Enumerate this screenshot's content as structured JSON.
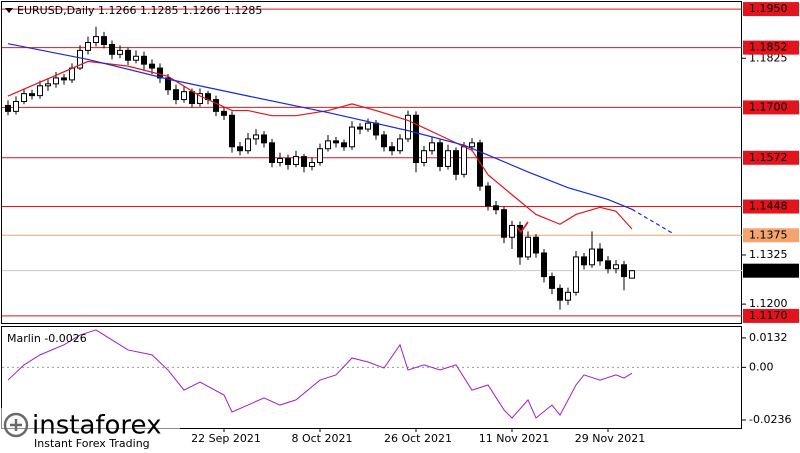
{
  "chart_data": [
    {
      "type": "candlestick",
      "title": "EURUSD,Daily  1.1266 1.1285 1.1266 1.1285",
      "categories": [
        null,
        null,
        null,
        null,
        null,
        null,
        null,
        null,
        null,
        null,
        null,
        null,
        null,
        null,
        null,
        null,
        null,
        null,
        null,
        null,
        null,
        null,
        null,
        null,
        null,
        null,
        null,
        "22 Sep 2021",
        null,
        null,
        null,
        null,
        null,
        null,
        null,
        null,
        null,
        null,
        null,
        "8 Oct 2021",
        null,
        null,
        null,
        null,
        null,
        null,
        null,
        null,
        null,
        null,
        null,
        "26 Oct 2021",
        null,
        null,
        null,
        null,
        null,
        null,
        null,
        null,
        null,
        null,
        null,
        "11 Nov 2021",
        null,
        null,
        null,
        null,
        null,
        null,
        null,
        null,
        null,
        null,
        null,
        "29 Nov 2021",
        null,
        null,
        null
      ],
      "candles": [
        [
          1.1705,
          1.1718,
          1.168,
          1.169
        ],
        [
          1.169,
          1.1728,
          1.1682,
          1.1715
        ],
        [
          1.1715,
          1.1748,
          1.1708,
          1.1735
        ],
        [
          1.1735,
          1.1745,
          1.172,
          1.173
        ],
        [
          1.173,
          1.1768,
          1.1722,
          1.1755
        ],
        [
          1.1755,
          1.1772,
          1.1742,
          1.176
        ],
        [
          1.176,
          1.179,
          1.175,
          1.1775
        ],
        [
          1.1775,
          1.1785,
          1.1758,
          1.177
        ],
        [
          1.177,
          1.1812,
          1.1762,
          1.18
        ],
        [
          1.18,
          1.1858,
          1.1795,
          1.1845
        ],
        [
          1.1845,
          1.188,
          1.1835,
          1.1865
        ],
        [
          1.1865,
          1.1905,
          1.1855,
          1.188
        ],
        [
          1.188,
          1.1892,
          1.185,
          1.186
        ],
        [
          1.186,
          1.187,
          1.1822,
          1.1835
        ],
        [
          1.1835,
          1.1858,
          1.1825,
          1.1845
        ],
        [
          1.1845,
          1.1852,
          1.1808,
          1.182
        ],
        [
          1.182,
          1.1845,
          1.1812,
          1.183
        ],
        [
          1.183,
          1.1842,
          1.1795,
          1.181
        ],
        [
          1.181,
          1.1822,
          1.1785,
          1.18
        ],
        [
          1.18,
          1.1812,
          1.1762,
          1.1775
        ],
        [
          1.1775,
          1.1785,
          1.1732,
          1.1745
        ],
        [
          1.1745,
          1.1758,
          1.1708,
          1.172
        ],
        [
          1.172,
          1.1755,
          1.1712,
          1.174
        ],
        [
          1.174,
          1.1748,
          1.17,
          1.171
        ],
        [
          1.171,
          1.1748,
          1.1702,
          1.1735
        ],
        [
          1.1735,
          1.1742,
          1.1708,
          1.172
        ],
        [
          1.172,
          1.173,
          1.1678,
          1.169
        ],
        [
          1.169,
          1.17,
          1.1668,
          1.168
        ],
        [
          1.168,
          1.169,
          1.1585,
          1.16
        ],
        [
          1.16,
          1.1612,
          1.1578,
          1.159
        ],
        [
          1.159,
          1.1635,
          1.1582,
          1.162
        ],
        [
          1.162,
          1.1645,
          1.1605,
          1.163
        ],
        [
          1.163,
          1.164,
          1.1598,
          1.161
        ],
        [
          1.161,
          1.162,
          1.1548,
          1.156
        ],
        [
          1.156,
          1.1585,
          1.155,
          1.157
        ],
        [
          1.157,
          1.158,
          1.1542,
          1.1555
        ],
        [
          1.1555,
          1.159,
          1.1548,
          1.1575
        ],
        [
          1.1575,
          1.1582,
          1.1535,
          1.155
        ],
        [
          1.155,
          1.1572,
          1.154,
          1.156
        ],
        [
          1.156,
          1.1608,
          1.1552,
          1.1595
        ],
        [
          1.1595,
          1.163,
          1.1588,
          1.1615
        ],
        [
          1.1615,
          1.1625,
          1.1598,
          1.161
        ],
        [
          1.161,
          1.1618,
          1.159,
          1.16
        ],
        [
          1.16,
          1.1665,
          1.1592,
          1.165
        ],
        [
          1.165,
          1.166,
          1.1632,
          1.1645
        ],
        [
          1.1645,
          1.1672,
          1.1638,
          1.166
        ],
        [
          1.166,
          1.1668,
          1.1618,
          1.163
        ],
        [
          1.163,
          1.164,
          1.1588,
          1.16
        ],
        [
          1.16,
          1.1612,
          1.1578,
          1.159
        ],
        [
          1.159,
          1.1632,
          1.1582,
          1.162
        ],
        [
          1.162,
          1.1692,
          1.1612,
          1.168
        ],
        [
          1.168,
          1.169,
          1.1535,
          1.156
        ],
        [
          1.156,
          1.1602,
          1.155,
          1.159
        ],
        [
          1.159,
          1.1625,
          1.158,
          1.161
        ],
        [
          1.161,
          1.1618,
          1.1538,
          1.155
        ],
        [
          1.155,
          1.1605,
          1.1542,
          1.159
        ],
        [
          1.159,
          1.1598,
          1.1515,
          1.153
        ],
        [
          1.153,
          1.1612,
          1.1522,
          1.16
        ],
        [
          1.16,
          1.1622,
          1.1588,
          1.161
        ],
        [
          1.161,
          1.1618,
          1.1488,
          1.15
        ],
        [
          1.15,
          1.151,
          1.1438,
          1.145
        ],
        [
          1.145,
          1.1462,
          1.1428,
          1.144
        ],
        [
          1.144,
          1.1448,
          1.1355,
          1.137
        ],
        [
          1.137,
          1.1412,
          1.134,
          1.14
        ],
        [
          1.14,
          1.141,
          1.13,
          1.132
        ],
        [
          1.132,
          1.1385,
          1.1312,
          1.137
        ],
        [
          1.137,
          1.1378,
          1.1318,
          1.133
        ],
        [
          1.133,
          1.134,
          1.1255,
          1.127
        ],
        [
          1.127,
          1.128,
          1.1225,
          1.124
        ],
        [
          1.124,
          1.125,
          1.1186,
          1.121
        ],
        [
          1.121,
          1.1242,
          1.1198,
          1.123
        ],
        [
          1.123,
          1.1335,
          1.1222,
          1.132
        ],
        [
          1.132,
          1.133,
          1.1288,
          1.13
        ],
        [
          1.13,
          1.1385,
          1.1292,
          1.134
        ],
        [
          1.134,
          1.1355,
          1.1298,
          1.131
        ],
        [
          1.131,
          1.1322,
          1.1278,
          1.129
        ],
        [
          1.129,
          1.1312,
          1.1278,
          1.13
        ],
        [
          1.13,
          1.131,
          1.1235,
          1.127
        ],
        [
          1.1266,
          1.1285,
          1.1266,
          1.1285
        ]
      ],
      "ylim": [
        1.1152,
        1.1968
      ],
      "yticks": [
        {
          "value": 1.12,
          "label": "1.1200"
        },
        1.1325,
        1.1825
      ],
      "levels": [
        {
          "value": 1.195,
          "label": "1.1950",
          "color": "#e3141c"
        },
        {
          "value": 1.1852,
          "color": "#e3141c"
        },
        {
          "value": 1.17,
          "label": "1.1700",
          "color": "#e3141c"
        },
        {
          "value": 1.1572,
          "color": "#e3141c"
        },
        {
          "value": 1.1448,
          "color": "#e3141c"
        },
        {
          "value": 1.1375,
          "color": "#f5a46e"
        },
        {
          "value": 1.117,
          "label": "1.1170",
          "color": "#e3141c"
        }
      ],
      "current_price": 1.1285,
      "series": [
        {
          "color": "#e3141c",
          "x": [
            0,
            10,
            15,
            20,
            24,
            28,
            30,
            33,
            36,
            40,
            43,
            46,
            50,
            54,
            58,
            60,
            63,
            66,
            69,
            71,
            74,
            76,
            78
          ],
          "values": [
            1.1729,
            1.1817,
            1.1805,
            1.1779,
            1.1729,
            1.1692,
            1.1692,
            1.1679,
            1.1679,
            1.1692,
            1.1709,
            1.1692,
            1.1667,
            1.1629,
            1.1591,
            1.1529,
            1.1478,
            1.1428,
            1.1403,
            1.1428,
            1.1446,
            1.1436,
            1.1391
          ]
        },
        {
          "color": "#1a2bd6",
          "x": [
            0,
            10,
            20,
            30,
            40,
            50,
            57,
            60,
            65,
            70,
            75,
            78
          ],
          "values": [
            1.1862,
            1.1822,
            1.1772,
            1.1729,
            1.1687,
            1.1641,
            1.1604,
            1.1579,
            1.1536,
            1.1496,
            1.1466,
            1.1441
          ]
        },
        {
          "color": "#1a2bd6",
          "dashed": true,
          "x": [
            78,
            83
          ],
          "values": [
            1.1441,
            1.1381
          ]
        }
      ]
    },
    {
      "type": "line",
      "label": "Marlin -0.0026",
      "color": "#a020c0",
      "x": [
        0,
        2,
        4,
        7,
        9,
        11,
        13,
        15,
        18,
        20,
        22,
        24,
        27,
        28,
        30,
        32,
        34,
        36,
        39,
        41,
        43,
        45,
        47,
        49,
        50,
        52,
        54,
        56,
        58,
        60,
        62,
        63,
        65,
        66,
        68,
        69,
        71,
        72,
        74,
        76,
        77,
        78
      ],
      "values": [
        -0.0057,
        0.0011,
        0.0056,
        0.0101,
        0.0145,
        0.0168,
        0.0123,
        0.0078,
        0.0056,
        -0.0012,
        -0.0102,
        -0.0066,
        -0.0124,
        -0.02,
        -0.0169,
        -0.0137,
        -0.0169,
        -0.0146,
        -0.0057,
        -0.0034,
        0.0042,
        0.0024,
        -0.0003,
        0.0101,
        -0.0012,
        0.0011,
        -0.0012,
        0.0011,
        -0.0102,
        -0.0079,
        -0.0191,
        -0.0227,
        -0.0146,
        -0.0227,
        -0.0169,
        -0.0214,
        -0.0079,
        -0.0034,
        -0.0057,
        -0.0034,
        -0.0048,
        -0.0026
      ],
      "ylim": [
        -0.0272,
        0.0181
      ],
      "yticks": [
        0.0132,
        {
          "value": 0,
          "label": "0.00"
        },
        -0.0236
      ]
    }
  ],
  "watermark": {
    "brand": "instaforex",
    "tagline": "Instant Forex Trading"
  }
}
